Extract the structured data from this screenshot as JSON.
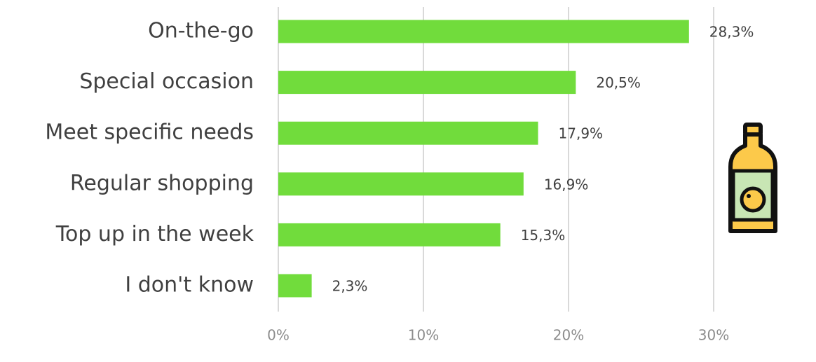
{
  "chart_data": {
    "type": "bar",
    "horizontal": true,
    "categories": [
      "On-the-go",
      "Special occasion",
      "Meet specific needs",
      "Regular shopping",
      "Top up in the week",
      "I don't know"
    ],
    "values": [
      28.3,
      20.5,
      17.9,
      16.9,
      15.3,
      2.3
    ],
    "value_labels": [
      "28,3%",
      "20,5%",
      "17,9%",
      "16,9%",
      "15,3%",
      "2,3%"
    ],
    "color": "#71dc3c",
    "xlim": [
      0,
      30
    ],
    "xticks": [
      {
        "value": 0,
        "label": "0%"
      },
      {
        "value": 10,
        "label": "10%"
      },
      {
        "value": 20,
        "label": "20%"
      },
      {
        "value": 30,
        "label": "30%"
      }
    ],
    "grid": true
  }
}
